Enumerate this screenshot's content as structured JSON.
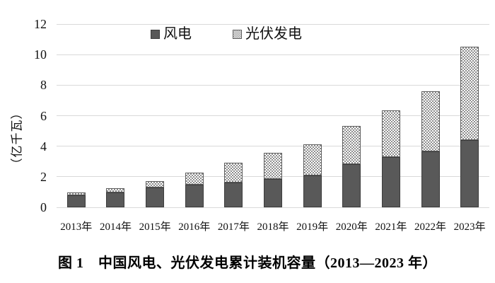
{
  "figure_caption": "图 1　中国风电、光伏发电累计装机容量（2013—2023 年）",
  "chart_data": {
    "type": "bar",
    "stacked": true,
    "title": "",
    "xlabel": "",
    "ylabel": "（亿千瓦）",
    "ylim": [
      0,
      12
    ],
    "yticks": [
      0,
      2,
      4,
      6,
      8,
      10,
      12
    ],
    "grid": "horizontal",
    "legend_position": "top-inside",
    "categories": [
      "2013年",
      "2014年",
      "2015年",
      "2016年",
      "2017年",
      "2018年",
      "2019年",
      "2020年",
      "2021年",
      "2022年",
      "2023年"
    ],
    "series": [
      {
        "name": "风电",
        "fill": "solid",
        "color": "#595959",
        "values": [
          0.77,
          0.96,
          1.29,
          1.49,
          1.64,
          1.84,
          2.1,
          2.81,
          3.28,
          3.65,
          4.41
        ]
      },
      {
        "name": "光伏发电",
        "fill": "checker",
        "color": "#8f8f8f",
        "values": [
          0.19,
          0.28,
          0.43,
          0.77,
          1.3,
          1.74,
          2.04,
          2.53,
          3.06,
          3.93,
          6.09
        ]
      }
    ]
  },
  "colors": {
    "background": "#ffffff",
    "gridline": "#d9d9d9",
    "text": "#000000",
    "wind_bar": "#595959",
    "solar_pattern": "#8f8f8f"
  }
}
